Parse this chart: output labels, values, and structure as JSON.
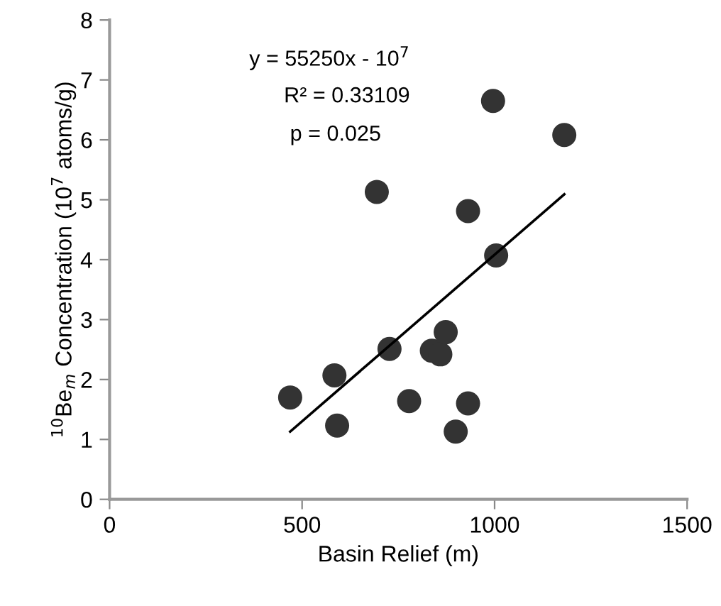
{
  "chart_data": {
    "type": "scatter",
    "xlabel": "Basin Relief (m)",
    "ylabel": "$^{10}$Be$_{m}$ Concentration (10$^{7}$ atoms/g)",
    "annotations": [
      "y = 55250x - 10$^{7}$",
      "R² = 0.33109",
      "p = 0.025"
    ],
    "x": [
      469,
      584,
      591,
      694,
      727,
      778,
      837,
      859,
      873,
      899,
      931,
      931,
      996,
      1004,
      1181
    ],
    "series": [
      {
        "color": "#333333",
        "marker": "circle",
        "values": [
          1.7,
          2.07,
          1.23,
          5.13,
          2.51,
          1.64,
          2.48,
          2.42,
          2.79,
          1.13,
          1.6,
          4.81,
          6.65,
          4.07,
          6.08
        ]
      },
      {
        "type": "line",
        "color": "#000000",
        "marker": "none",
        "line_style": "solid",
        "x": [
          469,
          1181
        ],
        "values": [
          1.13,
          5.09
        ]
      }
    ],
    "xlim": [
      0,
      1500
    ],
    "xticks": [
      0,
      500,
      1000,
      1500
    ],
    "ylim": [
      0,
      8
    ],
    "yticks": [
      0,
      1,
      2,
      3,
      4,
      5,
      6,
      7,
      8
    ],
    "grid": false,
    "legend": false
  }
}
